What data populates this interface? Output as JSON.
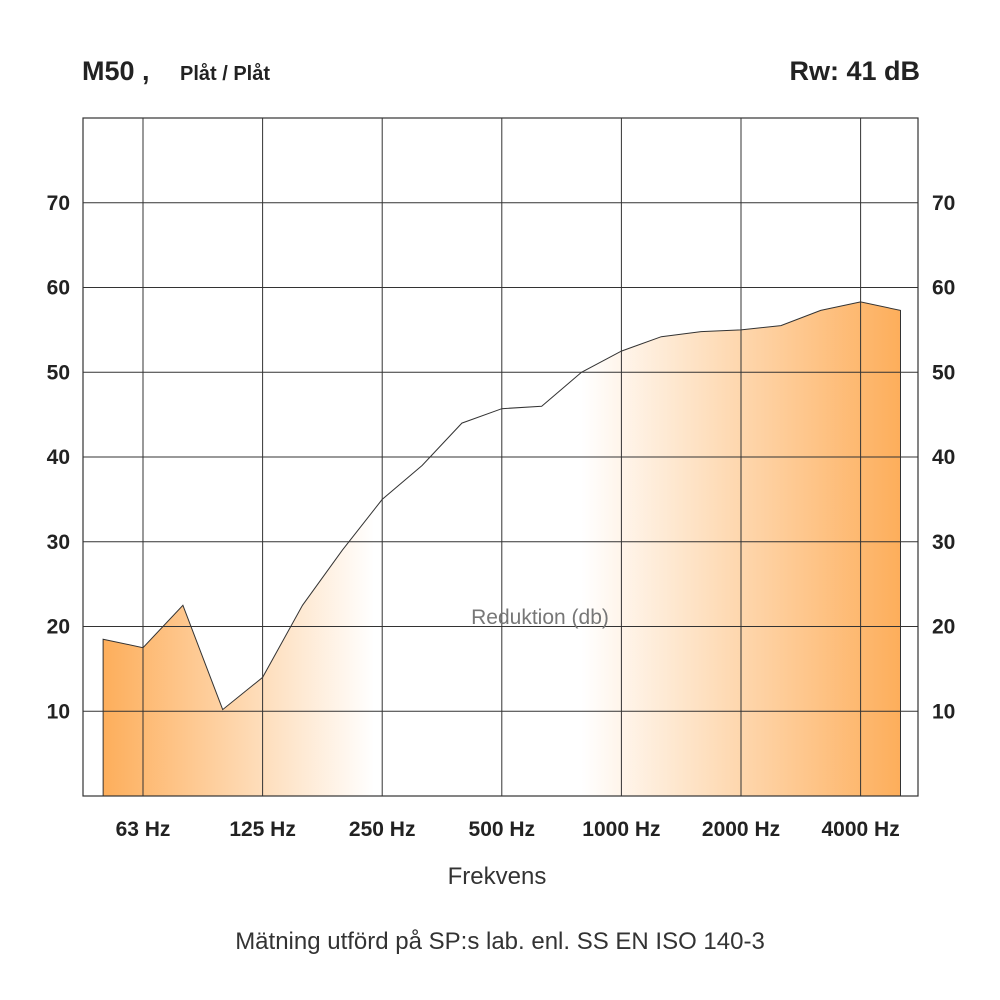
{
  "header": {
    "product": "M50 ,",
    "variant": "Plåt / Plåt",
    "rating": "Rw: 41 dB"
  },
  "caption": "Mätning utförd på SP:s lab. enl. SS EN ISO 140-3",
  "chart_data": {
    "type": "area",
    "xlabel": "Frekvens",
    "ylabel": "",
    "annotation": "Reduktion (db)",
    "ylim": [
      0,
      80
    ],
    "yticks": [
      10,
      20,
      30,
      40,
      50,
      60,
      70
    ],
    "xticks": [
      "63 Hz",
      "125 Hz",
      "250 Hz",
      "500 Hz",
      "1000 Hz",
      "2000 Hz",
      "4000 Hz"
    ],
    "grid": true,
    "colors": {
      "fill": "#fdae5b",
      "fill_light": "#ffffff",
      "line": "#333333",
      "grid": "#333333"
    },
    "series": [
      {
        "x": [
          "50 Hz",
          "63 Hz",
          "80 Hz",
          "100 Hz",
          "125 Hz",
          "160 Hz",
          "200 Hz",
          "250 Hz",
          "315 Hz",
          "400 Hz",
          "500 Hz",
          "630 Hz",
          "800 Hz",
          "1000 Hz",
          "1250 Hz",
          "1600 Hz",
          "2000 Hz",
          "2500 Hz",
          "3150 Hz",
          "4000 Hz",
          "5000 Hz"
        ],
        "values": [
          18.5,
          17.5,
          22.5,
          10.2,
          14,
          22.5,
          29,
          35,
          39,
          44,
          45.7,
          46,
          50,
          52.5,
          54.2,
          54.8,
          55,
          55.5,
          57.3,
          58.3,
          57.3
        ]
      }
    ]
  }
}
